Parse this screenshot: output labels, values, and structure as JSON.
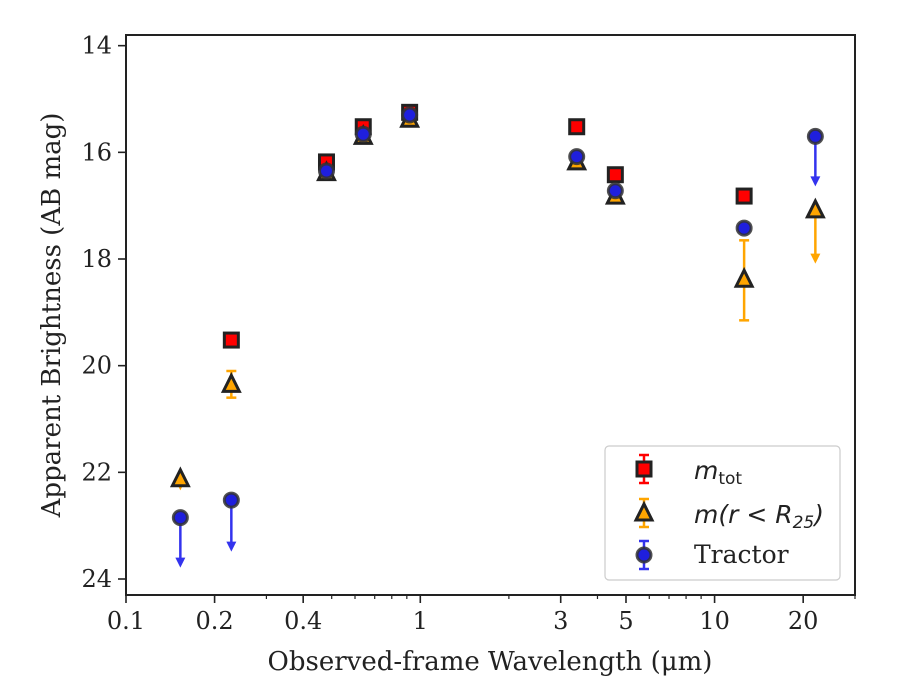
{
  "chart_data": {
    "type": "scatter",
    "xlabel": "Observed-frame Wavelength (μm)",
    "ylabel": "Apparent Brightness (AB mag)",
    "xscale": "log",
    "yscale": "linear-inverted",
    "xlim": [
      0.1,
      30
    ],
    "ylim": [
      24.3,
      13.8
    ],
    "grid": false,
    "legend_position": "lower-right",
    "x_ticks": [
      {
        "value": 0.1,
        "label": "0.1"
      },
      {
        "value": 0.2,
        "label": "0.2"
      },
      {
        "value": 0.4,
        "label": "0.4"
      },
      {
        "value": 1,
        "label": "1"
      },
      {
        "value": 3,
        "label": "3"
      },
      {
        "value": 5,
        "label": "5"
      },
      {
        "value": 10,
        "label": "10"
      },
      {
        "value": 20,
        "label": "20"
      }
    ],
    "y_ticks": [
      {
        "value": 14,
        "label": "14"
      },
      {
        "value": 16,
        "label": "16"
      },
      {
        "value": 18,
        "label": "18"
      },
      {
        "value": 20,
        "label": "20"
      },
      {
        "value": 22,
        "label": "22"
      },
      {
        "value": 24,
        "label": "24"
      }
    ],
    "series": [
      {
        "name_base": "m",
        "name_sub": "tot",
        "marker": "square",
        "fill": "#ff0000",
        "edge": "#222222",
        "errcolor": "#ff0000",
        "points": [
          {
            "x": 0.228,
            "y": 19.52
          },
          {
            "x": 0.48,
            "y": 16.18
          },
          {
            "x": 0.64,
            "y": 15.52
          },
          {
            "x": 0.92,
            "y": 15.25
          },
          {
            "x": 3.4,
            "y": 15.52
          },
          {
            "x": 4.6,
            "y": 16.42
          },
          {
            "x": 12.6,
            "y": 16.82
          }
        ]
      },
      {
        "name_base": "m(r < R",
        "name_sub": "25",
        "name_tail": ")",
        "marker": "triangle",
        "fill": "#ffa500",
        "edge": "#222222",
        "errcolor": "#ffa500",
        "points": [
          {
            "x": 0.153,
            "y": 22.12,
            "upper_limit_to": 22.3
          },
          {
            "x": 0.228,
            "y": 20.35,
            "err": [
              20.1,
              20.6
            ]
          },
          {
            "x": 0.48,
            "y": 16.38
          },
          {
            "x": 0.64,
            "y": 15.7
          },
          {
            "x": 0.92,
            "y": 15.38
          },
          {
            "x": 3.4,
            "y": 16.18
          },
          {
            "x": 4.6,
            "y": 16.82
          },
          {
            "x": 12.6,
            "y": 18.38,
            "err": [
              17.65,
              19.15
            ]
          },
          {
            "x": 22.0,
            "y": 17.08,
            "upper_limit_to": 18.05
          }
        ]
      },
      {
        "name": "Tractor",
        "marker": "circle",
        "fill": "#1f1fdd",
        "edge": "#333333",
        "errcolor": "#3333ee",
        "points": [
          {
            "x": 0.153,
            "y": 22.85,
            "upper_limit_to": 23.75
          },
          {
            "x": 0.228,
            "y": 22.52,
            "upper_limit_to": 23.45
          },
          {
            "x": 0.48,
            "y": 16.35
          },
          {
            "x": 0.64,
            "y": 15.66
          },
          {
            "x": 0.92,
            "y": 15.3
          },
          {
            "x": 3.4,
            "y": 16.08
          },
          {
            "x": 4.6,
            "y": 16.72
          },
          {
            "x": 12.6,
            "y": 17.42
          },
          {
            "x": 22.0,
            "y": 15.7,
            "upper_limit_to": 16.6
          }
        ]
      }
    ]
  }
}
